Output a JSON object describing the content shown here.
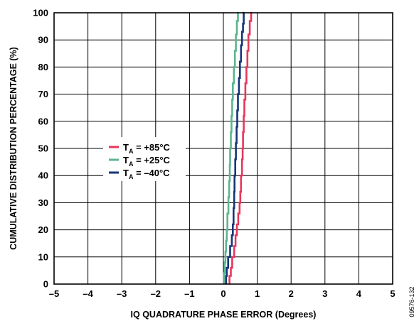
{
  "chart_data": {
    "type": "line",
    "xlabel": "IQ QUADRATURE PHASE ERROR (Degrees)",
    "ylabel": "CUMULATIVE DISTRIBUTION PERCENTAGE (%)",
    "xlim": [
      -5,
      5
    ],
    "ylim": [
      0,
      100
    ],
    "xticks": [
      "–5",
      "–4",
      "–3",
      "–2",
      "–1",
      "0",
      "1",
      "2",
      "3",
      "4",
      "5"
    ],
    "yticks": [
      "0",
      "10",
      "20",
      "30",
      "40",
      "50",
      "60",
      "70",
      "80",
      "90",
      "100"
    ],
    "grid": true,
    "legend_position": "center-left",
    "figure_id": "09576-132",
    "series": [
      {
        "name": "T_A = +85°C",
        "legend": {
          "prefix": "T",
          "sub": "A",
          "suffix": " = +85°C"
        },
        "color": "#e8365b",
        "points": [
          [
            0.18,
            0
          ],
          [
            0.22,
            3
          ],
          [
            0.26,
            6
          ],
          [
            0.32,
            10
          ],
          [
            0.36,
            14
          ],
          [
            0.4,
            18
          ],
          [
            0.44,
            22
          ],
          [
            0.48,
            26
          ],
          [
            0.5,
            30
          ],
          [
            0.52,
            34
          ],
          [
            0.55,
            40
          ],
          [
            0.57,
            46
          ],
          [
            0.58,
            50
          ],
          [
            0.6,
            56
          ],
          [
            0.62,
            62
          ],
          [
            0.65,
            68
          ],
          [
            0.68,
            74
          ],
          [
            0.71,
            80
          ],
          [
            0.74,
            86
          ],
          [
            0.78,
            92
          ],
          [
            0.82,
            97
          ],
          [
            0.86,
            100
          ]
        ]
      },
      {
        "name": "T_A = +25°C",
        "legend": {
          "prefix": "T",
          "sub": "A",
          "suffix": " = +25°C"
        },
        "color": "#5cb58e",
        "points": [
          [
            0.02,
            0
          ],
          [
            0.04,
            4
          ],
          [
            0.06,
            8
          ],
          [
            0.08,
            12
          ],
          [
            0.1,
            16
          ],
          [
            0.12,
            20
          ],
          [
            0.15,
            26
          ],
          [
            0.17,
            32
          ],
          [
            0.19,
            38
          ],
          [
            0.2,
            44
          ],
          [
            0.22,
            50
          ],
          [
            0.24,
            56
          ],
          [
            0.26,
            62
          ],
          [
            0.28,
            68
          ],
          [
            0.31,
            74
          ],
          [
            0.34,
            80
          ],
          [
            0.37,
            86
          ],
          [
            0.4,
            92
          ],
          [
            0.43,
            97
          ],
          [
            0.45,
            100
          ]
        ]
      },
      {
        "name": "T_A = –40°C",
        "legend": {
          "prefix": "T",
          "sub": "A",
          "suffix": " = –40°C"
        },
        "color": "#14357a",
        "points": [
          [
            0.08,
            0
          ],
          [
            0.1,
            3
          ],
          [
            0.14,
            6
          ],
          [
            0.2,
            10
          ],
          [
            0.25,
            14
          ],
          [
            0.28,
            18
          ],
          [
            0.3,
            22
          ],
          [
            0.32,
            28
          ],
          [
            0.33,
            34
          ],
          [
            0.35,
            40
          ],
          [
            0.37,
            46
          ],
          [
            0.39,
            52
          ],
          [
            0.41,
            58
          ],
          [
            0.43,
            64
          ],
          [
            0.46,
            70
          ],
          [
            0.49,
            76
          ],
          [
            0.52,
            82
          ],
          [
            0.55,
            88
          ],
          [
            0.58,
            93
          ],
          [
            0.6,
            96
          ],
          [
            0.62,
            100
          ]
        ]
      }
    ]
  }
}
